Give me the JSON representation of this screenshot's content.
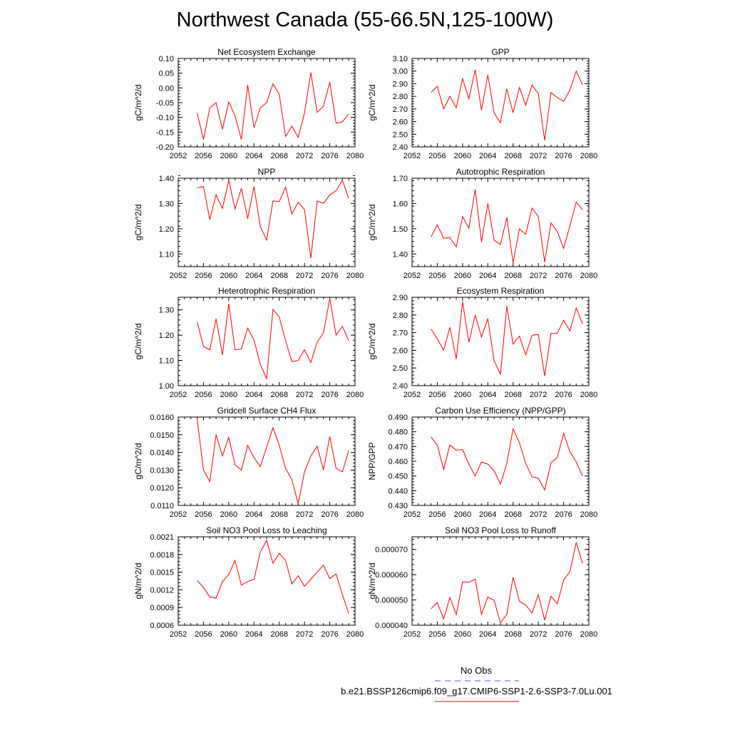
{
  "title": "Northwest Canada (55-66.5N,125-100W)",
  "legend": {
    "obs_label": "No Obs",
    "model_label": "b.e21.BSSP126cmip6.f09_g17.CMIP6-SSP1-2.6-SSP3-7.0Lu.001",
    "obs_color": "#5555cc",
    "model_color": "#ff0000"
  },
  "chart_data": [
    {
      "type": "line",
      "title": "Net Ecosystem Exchange",
      "ylabel": "gC/m^2/d",
      "xlim": [
        2052,
        2080
      ],
      "xticks": [
        "2052",
        "2056",
        "2060",
        "2064",
        "2068",
        "2072",
        "2076",
        "2080"
      ],
      "ylim": [
        -0.2,
        0.1
      ],
      "yticks": [
        "-0.20",
        "-0.15",
        "-0.10",
        "-0.05",
        "0.00",
        "0.05",
        "0.10"
      ],
      "x": [
        2055,
        2056,
        2057,
        2058,
        2059,
        2060,
        2061,
        2062,
        2063,
        2064,
        2065,
        2066,
        2067,
        2068,
        2069,
        2070,
        2071,
        2072,
        2073,
        2074,
        2075,
        2076,
        2077,
        2078,
        2079
      ],
      "values": [
        -0.085,
        -0.175,
        -0.068,
        -0.05,
        -0.14,
        -0.048,
        -0.095,
        -0.175,
        0.01,
        -0.135,
        -0.068,
        -0.05,
        0.014,
        -0.022,
        -0.165,
        -0.13,
        -0.168,
        -0.085,
        0.052,
        -0.083,
        -0.062,
        0.02,
        -0.12,
        -0.115,
        -0.088
      ]
    },
    {
      "type": "line",
      "title": "GPP",
      "ylabel": "gC/m^2/d",
      "xlim": [
        2052,
        2080
      ],
      "xticks": [
        "2052",
        "2056",
        "2060",
        "2064",
        "2068",
        "2072",
        "2076",
        "2080"
      ],
      "ylim": [
        2.4,
        3.1
      ],
      "yticks": [
        "2.40",
        "2.50",
        "2.60",
        "2.70",
        "2.80",
        "2.90",
        "3.00",
        "3.10"
      ],
      "x": [
        2055,
        2056,
        2057,
        2058,
        2059,
        2060,
        2061,
        2062,
        2063,
        2064,
        2065,
        2066,
        2067,
        2068,
        2069,
        2070,
        2071,
        2072,
        2073,
        2074,
        2075,
        2076,
        2077,
        2078,
        2079
      ],
      "values": [
        2.83,
        2.88,
        2.7,
        2.8,
        2.71,
        2.94,
        2.78,
        3.01,
        2.69,
        2.97,
        2.67,
        2.59,
        2.86,
        2.67,
        2.87,
        2.73,
        2.89,
        2.82,
        2.45,
        2.83,
        2.79,
        2.76,
        2.85,
        3.0,
        2.89
      ]
    },
    {
      "type": "line",
      "title": "NPP",
      "ylabel": "gC/m^2/d",
      "xlim": [
        2052,
        2080
      ],
      "xticks": [
        "2052",
        "2056",
        "2060",
        "2064",
        "2068",
        "2072",
        "2076",
        "2080"
      ],
      "ylim": [
        1.05,
        1.4
      ],
      "yticks": [
        "1.10",
        "1.20",
        "1.30",
        "1.40"
      ],
      "x": [
        2055,
        2056,
        2057,
        2058,
        2059,
        2060,
        2061,
        2062,
        2063,
        2064,
        2065,
        2066,
        2067,
        2068,
        2069,
        2070,
        2071,
        2072,
        2073,
        2074,
        2075,
        2076,
        2077,
        2078,
        2079
      ],
      "values": [
        1.362,
        1.367,
        1.236,
        1.334,
        1.28,
        1.392,
        1.278,
        1.36,
        1.24,
        1.367,
        1.21,
        1.155,
        1.31,
        1.308,
        1.365,
        1.258,
        1.305,
        1.276,
        1.083,
        1.31,
        1.3,
        1.334,
        1.35,
        1.392,
        1.32
      ]
    },
    {
      "type": "line",
      "title": "Autotrophic Respiration",
      "ylabel": "gC/m^2/d",
      "xlim": [
        2052,
        2080
      ],
      "xticks": [
        "2052",
        "2056",
        "2060",
        "2064",
        "2068",
        "2072",
        "2076",
        "2080"
      ],
      "ylim": [
        1.35,
        1.7
      ],
      "yticks": [
        "1.40",
        "1.50",
        "1.60",
        "1.70"
      ],
      "x": [
        2055,
        2056,
        2057,
        2058,
        2059,
        2060,
        2061,
        2062,
        2063,
        2064,
        2065,
        2066,
        2067,
        2068,
        2069,
        2070,
        2071,
        2072,
        2073,
        2074,
        2075,
        2076,
        2077,
        2078,
        2079
      ],
      "values": [
        1.468,
        1.515,
        1.462,
        1.465,
        1.428,
        1.548,
        1.502,
        1.655,
        1.448,
        1.6,
        1.455,
        1.437,
        1.545,
        1.365,
        1.5,
        1.478,
        1.582,
        1.548,
        1.368,
        1.523,
        1.49,
        1.422,
        1.512,
        1.606,
        1.575
      ]
    },
    {
      "type": "line",
      "title": "Heterotrophic Respiration",
      "ylabel": "gC/m^2/d",
      "xlim": [
        2052,
        2080
      ],
      "xticks": [
        "2052",
        "2056",
        "2060",
        "2064",
        "2068",
        "2072",
        "2076",
        "2080"
      ],
      "ylim": [
        1.0,
        1.35
      ],
      "yticks": [
        "1.00",
        "1.10",
        "1.20",
        "1.30"
      ],
      "x": [
        2055,
        2056,
        2057,
        2058,
        2059,
        2060,
        2061,
        2062,
        2063,
        2064,
        2065,
        2066,
        2067,
        2068,
        2069,
        2070,
        2071,
        2072,
        2073,
        2074,
        2075,
        2076,
        2077,
        2078,
        2079
      ],
      "values": [
        1.252,
        1.155,
        1.142,
        1.265,
        1.122,
        1.325,
        1.142,
        1.145,
        1.228,
        1.18,
        1.085,
        1.028,
        1.302,
        1.272,
        1.178,
        1.095,
        1.1,
        1.142,
        1.092,
        1.172,
        1.21,
        1.345,
        1.2,
        1.235,
        1.178
      ]
    },
    {
      "type": "line",
      "title": "Ecosystem Respiration",
      "ylabel": "gC/m^2/d",
      "xlim": [
        2052,
        2080
      ],
      "xticks": [
        "2052",
        "2056",
        "2060",
        "2064",
        "2068",
        "2072",
        "2076",
        "2080"
      ],
      "ylim": [
        2.4,
        2.9
      ],
      "yticks": [
        "2.40",
        "2.50",
        "2.60",
        "2.70",
        "2.80",
        "2.90"
      ],
      "x": [
        2055,
        2056,
        2057,
        2058,
        2059,
        2060,
        2061,
        2062,
        2063,
        2064,
        2065,
        2066,
        2067,
        2068,
        2069,
        2070,
        2071,
        2072,
        2073,
        2074,
        2075,
        2076,
        2077,
        2078,
        2079
      ],
      "values": [
        2.72,
        2.665,
        2.6,
        2.73,
        2.55,
        2.875,
        2.645,
        2.8,
        2.675,
        2.78,
        2.54,
        2.465,
        2.85,
        2.635,
        2.68,
        2.575,
        2.685,
        2.69,
        2.455,
        2.695,
        2.695,
        2.77,
        2.71,
        2.84,
        2.75
      ]
    },
    {
      "type": "line",
      "title": "Gridcell Surface CH4 Flux",
      "ylabel": "gC/m^2/d",
      "xlim": [
        2052,
        2080
      ],
      "xticks": [
        "2052",
        "2056",
        "2060",
        "2064",
        "2068",
        "2072",
        "2076",
        "2080"
      ],
      "ylim": [
        0.011,
        0.016
      ],
      "yticks": [
        "0.0110",
        "0.0120",
        "0.0130",
        "0.0140",
        "0.0150",
        "0.0160"
      ],
      "x": [
        2055,
        2056,
        2057,
        2058,
        2059,
        2060,
        2061,
        2062,
        2063,
        2064,
        2065,
        2066,
        2067,
        2068,
        2069,
        2070,
        2071,
        2072,
        2073,
        2074,
        2075,
        2076,
        2077,
        2078,
        2079
      ],
      "values": [
        0.0159,
        0.013,
        0.01235,
        0.015,
        0.0138,
        0.01485,
        0.0133,
        0.013,
        0.0144,
        0.0137,
        0.0132,
        0.0143,
        0.0154,
        0.0144,
        0.0131,
        0.01245,
        0.0111,
        0.0129,
        0.0138,
        0.01435,
        0.013,
        0.0149,
        0.0131,
        0.0129,
        0.0141
      ]
    },
    {
      "type": "line",
      "title": "Carbon Use Efficiency (NPP/GPP)",
      "ylabel": "NPP/GPP",
      "xlim": [
        2052,
        2080
      ],
      "xticks": [
        "2052",
        "2056",
        "2060",
        "2064",
        "2068",
        "2072",
        "2076",
        "2080"
      ],
      "ylim": [
        0.43,
        0.49
      ],
      "yticks": [
        "0.430",
        "0.440",
        "0.450",
        "0.460",
        "0.470",
        "0.480",
        "0.490"
      ],
      "x": [
        2055,
        2056,
        2057,
        2058,
        2059,
        2060,
        2061,
        2062,
        2063,
        2064,
        2065,
        2066,
        2067,
        2068,
        2069,
        2070,
        2071,
        2072,
        2073,
        2074,
        2075,
        2076,
        2077,
        2078,
        2079
      ],
      "values": [
        0.4765,
        0.471,
        0.4545,
        0.471,
        0.4675,
        0.468,
        0.458,
        0.45,
        0.4595,
        0.458,
        0.4535,
        0.4445,
        0.4585,
        0.482,
        0.4725,
        0.4585,
        0.4495,
        0.4485,
        0.4405,
        0.459,
        0.4625,
        0.479,
        0.4665,
        0.4595,
        0.45
      ]
    },
    {
      "type": "line",
      "title": "Soil NO3 Pool Loss to Leaching",
      "ylabel": "gN/m^2/d",
      "xlim": [
        2052,
        2080
      ],
      "xticks": [
        "2052",
        "2056",
        "2060",
        "2064",
        "2068",
        "2072",
        "2076",
        "2080"
      ],
      "ylim": [
        0.0006,
        0.0021
      ],
      "yticks": [
        "0.0006",
        "0.0009",
        "0.0012",
        "0.0015",
        "0.0018",
        "0.0021"
      ],
      "x": [
        2055,
        2056,
        2057,
        2058,
        2059,
        2060,
        2061,
        2062,
        2063,
        2064,
        2065,
        2066,
        2067,
        2068,
        2069,
        2070,
        2071,
        2072,
        2073,
        2074,
        2075,
        2076,
        2077,
        2078,
        2079
      ],
      "values": [
        0.00136,
        0.00124,
        0.00108,
        0.00106,
        0.00134,
        0.00146,
        0.0017,
        0.00128,
        0.00134,
        0.00138,
        0.00184,
        0.00204,
        0.00165,
        0.00182,
        0.0017,
        0.0013,
        0.00144,
        0.00126,
        0.00138,
        0.0015,
        0.00162,
        0.00139,
        0.00147,
        0.00112,
        0.0008
      ]
    },
    {
      "type": "line",
      "title": "Soil NO3 Pool Loss to Runoff",
      "ylabel": "gN/m^2/d",
      "xlim": [
        2052,
        2080
      ],
      "xticks": [
        "2052",
        "2056",
        "2060",
        "2064",
        "2068",
        "2072",
        "2076",
        "2080"
      ],
      "ylim": [
        4e-05,
        7.5e-05
      ],
      "yticks": [
        "0.000040",
        "0.000050",
        "0.000060",
        "0.000070"
      ],
      "x": [
        2055,
        2056,
        2057,
        2058,
        2059,
        2060,
        2061,
        2062,
        2063,
        2064,
        2065,
        2066,
        2067,
        2068,
        2069,
        2070,
        2071,
        2072,
        2073,
        2074,
        2075,
        2076,
        2077,
        2078,
        2079
      ],
      "values": [
        4.65e-05,
        4.9e-05,
        4.25e-05,
        5.1e-05,
        4.42e-05,
        5.72e-05,
        5.7e-05,
        5.82e-05,
        4.43e-05,
        5.12e-05,
        4.98e-05,
        4.1e-05,
        4.42e-05,
        5.9e-05,
        4.95e-05,
        4.8e-05,
        4.48e-05,
        5.21e-05,
        4.2e-05,
        5.15e-05,
        4.85e-05,
        5.78e-05,
        6.12e-05,
        7.28e-05,
        6.45e-05
      ]
    }
  ]
}
